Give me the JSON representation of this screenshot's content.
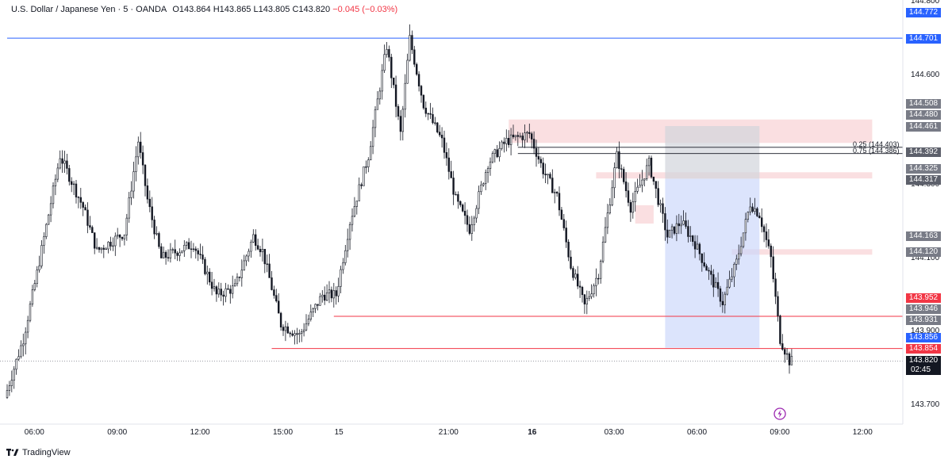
{
  "header": {
    "symbol": "U.S. Dollar / Japanese Yen · 5 · OANDA",
    "open": "O143.864",
    "high": "H143.865",
    "low": "L143.805",
    "close": "C143.820",
    "change": "−0.045 (−0.03%)"
  },
  "brand": {
    "name": "TradingView"
  },
  "colors": {
    "up": "#131722",
    "down": "#131722",
    "accent": "#2962ff",
    "red_line": "#f23645",
    "zone_red": "#f7c9cd",
    "zone_blue": "#c9d6fb",
    "zone_gray": "#d1d4dc"
  },
  "chart_data": {
    "type": "candlestick",
    "title": "U.S. Dollar / Japanese Yen · 5 · OANDA",
    "ylim": [
      143.665,
      144.805
    ],
    "y_ticks": [
      "144.800",
      "144.600",
      "144.300",
      "144.100",
      "143.900",
      "143.700"
    ],
    "x_ticks": [
      {
        "label": "06:00",
        "index": 12
      },
      {
        "label": "09:00",
        "index": 48
      },
      {
        "label": "12:00",
        "index": 84
      },
      {
        "label": "15:00",
        "index": 120
      },
      {
        "label": "15",
        "index": 144
      },
      {
        "label": "21:00",
        "index": 192
      },
      {
        "label": "16",
        "index": 228
      },
      {
        "label": "03:00",
        "index": 264
      },
      {
        "label": "06:00",
        "index": 300
      },
      {
        "label": "09:00",
        "index": 336
      },
      {
        "label": "12:00",
        "index": 372
      }
    ],
    "candle_count": 342,
    "keypoints": [
      [
        0,
        143.72
      ],
      [
        8,
        143.88
      ],
      [
        14,
        144.06
      ],
      [
        24,
        144.38
      ],
      [
        34,
        144.24
      ],
      [
        40,
        144.12
      ],
      [
        52,
        144.17
      ],
      [
        58,
        144.42
      ],
      [
        62,
        144.26
      ],
      [
        68,
        144.1
      ],
      [
        82,
        144.14
      ],
      [
        92,
        144.0
      ],
      [
        100,
        144.02
      ],
      [
        108,
        144.16
      ],
      [
        112,
        144.12
      ],
      [
        120,
        143.92
      ],
      [
        128,
        143.89
      ],
      [
        138,
        144.0
      ],
      [
        144,
        144.0
      ],
      [
        150,
        144.2
      ],
      [
        158,
        144.38
      ],
      [
        166,
        144.68
      ],
      [
        172,
        144.44
      ],
      [
        176,
        144.7
      ],
      [
        182,
        144.52
      ],
      [
        190,
        144.42
      ],
      [
        196,
        144.26
      ],
      [
        202,
        144.18
      ],
      [
        210,
        144.36
      ],
      [
        218,
        144.42
      ],
      [
        228,
        144.44
      ],
      [
        234,
        144.34
      ],
      [
        240,
        144.27
      ],
      [
        246,
        144.08
      ],
      [
        252,
        143.97
      ],
      [
        258,
        144.06
      ],
      [
        266,
        144.38
      ],
      [
        272,
        144.24
      ],
      [
        280,
        144.36
      ],
      [
        288,
        144.16
      ],
      [
        294,
        144.2
      ],
      [
        300,
        144.14
      ],
      [
        306,
        144.06
      ],
      [
        312,
        143.98
      ],
      [
        318,
        144.09
      ],
      [
        324,
        144.25
      ],
      [
        328,
        144.22
      ],
      [
        333,
        144.1
      ],
      [
        337,
        143.88
      ],
      [
        341,
        143.82
      ]
    ],
    "levels": [
      {
        "price": 144.772,
        "label": "144.772",
        "color": "#2962ff"
      },
      {
        "price": 144.701,
        "label": "144.701",
        "color": "#2962ff"
      },
      {
        "price": 144.508,
        "label": "144.508",
        "color": "#787b86"
      },
      {
        "price": 144.48,
        "label": "144.480",
        "color": "#787b86"
      },
      {
        "price": 144.461,
        "label": "144.461",
        "color": "#787b86"
      },
      {
        "price": 144.392,
        "label": "144.392",
        "color": "#5d606b"
      },
      {
        "price": 144.325,
        "label": "144.325",
        "color": "#787b86"
      },
      {
        "price": 144.317,
        "label": "144.317",
        "color": "#5d606b"
      },
      {
        "price": 144.163,
        "label": "144.163",
        "color": "#787b86"
      },
      {
        "price": 144.12,
        "label": "144.120",
        "color": "#787b86"
      },
      {
        "price": 143.952,
        "label": "143.952",
        "color": "#f23645"
      },
      {
        "price": 143.946,
        "label": "143.946",
        "color": "#787b86"
      },
      {
        "price": 143.931,
        "label": "143.931",
        "color": "#787b86"
      },
      {
        "price": 143.856,
        "label": "143.856",
        "color": "#2962ff"
      },
      {
        "price": 143.854,
        "label": "143.854",
        "color": "#f23645"
      },
      {
        "price": 143.82,
        "label": "143.820",
        "color": "#131722"
      }
    ],
    "countdown": "02:45",
    "fib": [
      {
        "label": "0.25 (144.403)",
        "price": 144.403
      },
      {
        "label": "0.75 (144.386)",
        "price": 144.386
      }
    ],
    "horizontal_lines": [
      {
        "price": 144.701,
        "from_index": 0,
        "color": "#2962ff"
      },
      {
        "price": 143.942,
        "from_index": 142,
        "color": "#f23645"
      },
      {
        "price": 143.854,
        "from_index": 115,
        "color": "#f23645"
      }
    ],
    "zones": [
      {
        "kind": "supply",
        "from_index": 218,
        "to_index": 376,
        "top": 144.479,
        "bottom": 144.415
      },
      {
        "kind": "supply",
        "from_index": 256,
        "to_index": 376,
        "top": 144.335,
        "bottom": 144.318
      },
      {
        "kind": "supply",
        "from_index": 273,
        "to_index": 281,
        "top": 144.245,
        "bottom": 144.195
      },
      {
        "kind": "supply",
        "from_index": 315,
        "to_index": 376,
        "top": 144.125,
        "bottom": 144.11
      },
      {
        "kind": "position_stop",
        "from_index": 286,
        "to_index": 327,
        "top": 144.461,
        "bottom": 144.317
      },
      {
        "kind": "position_target",
        "from_index": 286,
        "to_index": 327,
        "top": 144.317,
        "bottom": 143.856
      }
    ]
  }
}
